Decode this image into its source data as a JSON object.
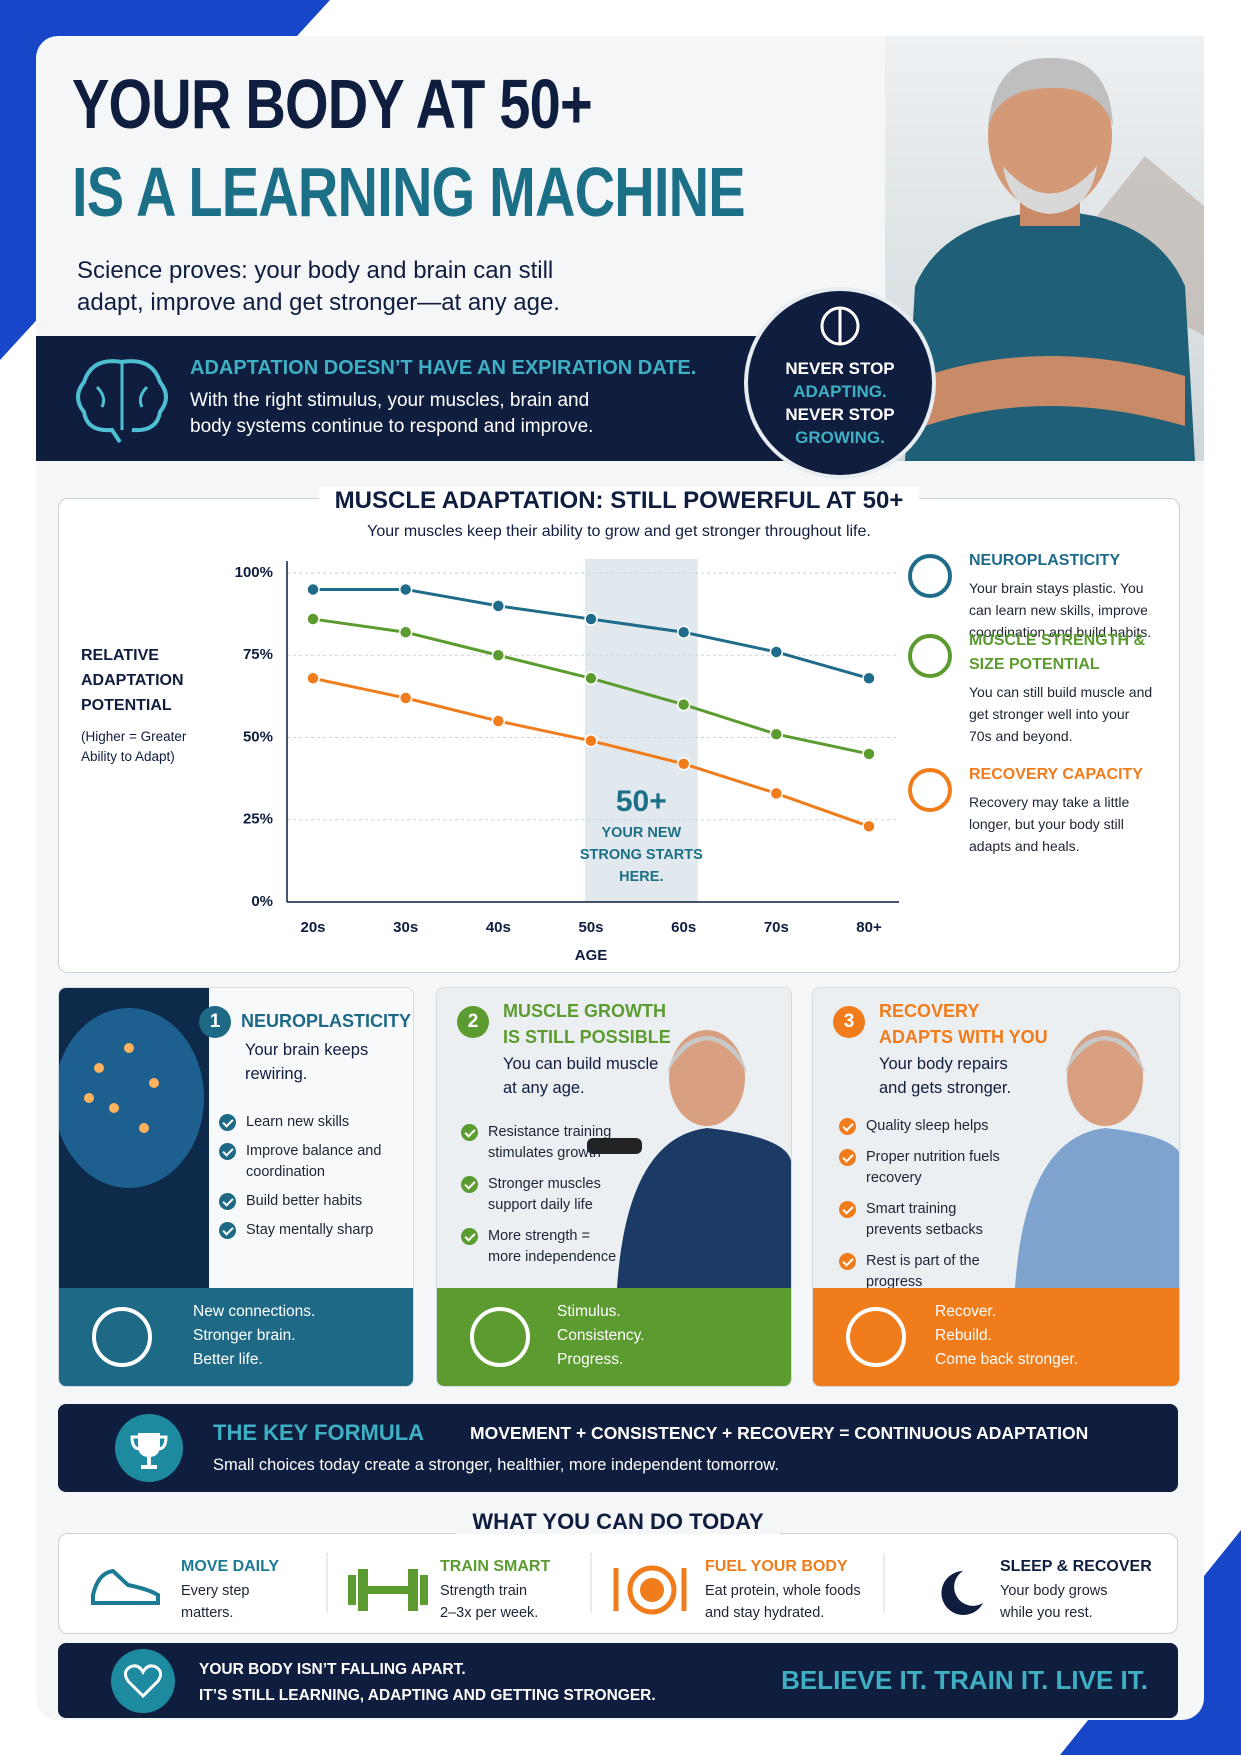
{
  "header": {
    "title_lines": [
      "YOUR BODY AT 50+",
      "IS A LEARNING MACHINE"
    ],
    "subtitle_lines": [
      "Science proves: your body and brain can still",
      "adapt, improve and get stronger—at any age."
    ]
  },
  "banner": {
    "heading": "ADAPTATION DOESN’T HAVE AN EXPIRATION DATE.",
    "body_lines": [
      "With the right stimulus, your muscles, brain and",
      "body systems continue to respond and improve."
    ]
  },
  "badge": {
    "lines": [
      "NEVER STOP",
      "ADAPTING.",
      "NEVER STOP",
      "GROWING."
    ]
  },
  "chart_data": {
    "type": "line",
    "title": "MUSCLE ADAPTATION: STILL POWERFUL AT 50+",
    "subtitle": "Your muscles keep their ability to grow and get stronger throughout life.",
    "y_label": "RELATIVE ADAPTATION POTENTIAL",
    "y_label_note": "(Higher = Greater Ability to Adapt)",
    "x_label": "AGE",
    "categories": [
      "20s",
      "30s",
      "40s",
      "50s",
      "60s",
      "70s",
      "80+"
    ],
    "series": [
      {
        "name": "NEUROPLASTICITY",
        "description": "Your brain stays plastic. You can learn new skills, improve coordination and build habits.",
        "color": "#1f6b8a",
        "values": [
          95,
          95,
          90,
          86,
          82,
          76,
          68
        ]
      },
      {
        "name": "MUSCLE STRENGTH & SIZE POTENTIAL",
        "description": "You can still build muscle and get stronger well into your 70s and beyond.",
        "color": "#5b9b2f",
        "values": [
          86,
          82,
          75,
          68,
          60,
          51,
          45
        ]
      },
      {
        "name": "RECOVERY CAPACITY",
        "description": "Recovery may take a little longer, but your body still adapts and heals.",
        "color": "#f07c1b",
        "values": [
          68,
          62,
          55,
          49,
          42,
          33,
          23
        ]
      }
    ],
    "ylim": [
      0,
      100
    ],
    "yticks": [
      {
        "value": 0,
        "label": "0%"
      },
      {
        "value": 25,
        "label": "25%"
      },
      {
        "value": 50,
        "label": "50%"
      },
      {
        "value": 75,
        "label": "75%"
      },
      {
        "value": 100,
        "label": "100%"
      }
    ],
    "grid": true,
    "highlight_categories": [
      "50s",
      "60s"
    ],
    "annotation": {
      "title": "50+",
      "lines": [
        "YOUR NEW",
        "STRONG STARTS",
        "HERE."
      ]
    }
  },
  "cards": [
    {
      "number": 1,
      "title_lines": [
        "NEUROPLASTICITY"
      ],
      "subtitle": "Your brain keeps rewiring.",
      "items": [
        "Learn new skills",
        "Improve balance and coordination",
        "Build better habits",
        "Stay mentally sharp"
      ],
      "footer_lines": [
        "New connections.",
        "Stronger brain.",
        "Better life."
      ],
      "color": "#1e6a86"
    },
    {
      "number": 2,
      "title_lines": [
        "MUSCLE GROWTH",
        "IS STILL POSSIBLE"
      ],
      "subtitle": "You can build muscle at any age.",
      "items": [
        "Resistance training stimulates growth",
        "Stronger muscles support daily life",
        "More strength = more independence"
      ],
      "footer_lines": [
        "Stimulus.",
        "Consistency.",
        "Progress."
      ],
      "color": "#5b9b2f"
    },
    {
      "number": 3,
      "title_lines": [
        "RECOVERY",
        "ADAPTS WITH YOU"
      ],
      "subtitle": "Your body repairs and gets stronger.",
      "items": [
        "Quality sleep helps",
        "Proper nutrition fuels recovery",
        "Smart training prevents setbacks",
        "Rest is part of the progress"
      ],
      "footer_lines": [
        "Recover.",
        "Rebuild.",
        "Come back stronger."
      ],
      "color": "#f07c1b"
    }
  ],
  "formula": {
    "title": "THE KEY FORMULA",
    "equation": "MOVEMENT + CONSISTENCY + RECOVERY = CONTINUOUS ADAPTATION",
    "text": "Small choices today create a stronger, healthier, more independent tomorrow."
  },
  "actions": {
    "title": "WHAT YOU CAN DO TODAY",
    "items": [
      {
        "title": "MOVE DAILY",
        "lines": [
          "Every step",
          "matters."
        ],
        "color": "#1d7a93"
      },
      {
        "title": "TRAIN SMART",
        "lines": [
          "Strength train",
          "2–3x per week."
        ],
        "color": "#5b9b2f"
      },
      {
        "title": "FUEL YOUR BODY",
        "lines": [
          "Eat protein, whole foods",
          "and stay hydrated."
        ],
        "color": "#f07c1b"
      },
      {
        "title": "SLEEP & RECOVER",
        "lines": [
          "Your body grows",
          "while you rest."
        ],
        "color": "#0f1d3f"
      }
    ]
  },
  "footer": {
    "lines": [
      "YOUR BODY ISN’T FALLING APART.",
      "IT’S STILL LEARNING, ADAPTING AND GETTING STRONGER."
    ],
    "slogan": "BELIEVE IT. TRAIN IT. LIVE IT."
  }
}
